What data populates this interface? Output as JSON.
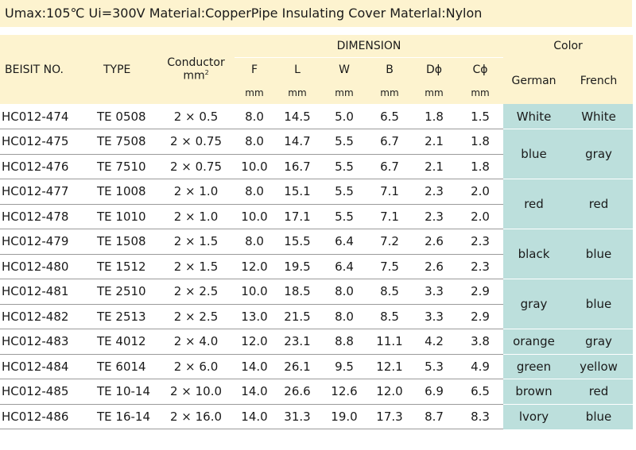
{
  "banner": "Umax:105℃ Ui=300V Material:CopperPipe Insulating Cover Materlal:Nylon",
  "headers": {
    "beisit_no": "BEISIT NO.",
    "type": "TYPE",
    "conductor": "Conductor",
    "conductor_unit": "mm",
    "conductor_unit_sup": "2",
    "dimension": "DIMENSION",
    "color": "Color",
    "dims": [
      "F",
      "L",
      "W",
      "B",
      "Dϕ",
      "Cϕ"
    ],
    "dim_unit": "mm",
    "german": "German",
    "french": "French"
  },
  "rows": [
    {
      "no": "HC012-474",
      "type": "TE 0508",
      "conductor": "2 × 0.5",
      "F": "8.0",
      "L": "14.5",
      "W": "5.0",
      "B": "6.5",
      "D": "1.8",
      "C": "1.5"
    },
    {
      "no": "HC012-475",
      "type": "TE 7508",
      "conductor": "2 × 0.75",
      "F": "8.0",
      "L": "14.7",
      "W": "5.5",
      "B": "6.7",
      "D": "2.1",
      "C": "1.8"
    },
    {
      "no": "HC012-476",
      "type": "TE 7510",
      "conductor": "2 × 0.75",
      "F": "10.0",
      "L": "16.7",
      "W": "5.5",
      "B": "6.7",
      "D": "2.1",
      "C": "1.8"
    },
    {
      "no": "HC012-477",
      "type": "TE 1008",
      "conductor": "2 × 1.0",
      "F": "8.0",
      "L": "15.1",
      "W": "5.5",
      "B": "7.1",
      "D": "2.3",
      "C": "2.0"
    },
    {
      "no": "HC012-478",
      "type": "TE 1010",
      "conductor": "2 × 1.0",
      "F": "10.0",
      "L": "17.1",
      "W": "5.5",
      "B": "7.1",
      "D": "2.3",
      "C": "2.0"
    },
    {
      "no": "HC012-479",
      "type": "TE 1508",
      "conductor": "2 × 1.5",
      "F": "8.0",
      "L": "15.5",
      "W": "6.4",
      "B": "7.2",
      "D": "2.6",
      "C": "2.3"
    },
    {
      "no": "HC012-480",
      "type": "TE 1512",
      "conductor": "2 × 1.5",
      "F": "12.0",
      "L": "19.5",
      "W": "6.4",
      "B": "7.5",
      "D": "2.6",
      "C": "2.3"
    },
    {
      "no": "HC012-481",
      "type": "TE 2510",
      "conductor": "2 × 2.5",
      "F": "10.0",
      "L": "18.5",
      "W": "8.0",
      "B": "8.5",
      "D": "3.3",
      "C": "2.9"
    },
    {
      "no": "HC012-482",
      "type": "TE 2513",
      "conductor": "2 × 2.5",
      "F": "13.0",
      "L": "21.5",
      "W": "8.0",
      "B": "8.5",
      "D": "3.3",
      "C": "2.9"
    },
    {
      "no": "HC012-483",
      "type": "TE 4012",
      "conductor": "2 × 4.0",
      "F": "12.0",
      "L": "23.1",
      "W": "8.8",
      "B": "11.1",
      "D": "4.2",
      "C": "3.8"
    },
    {
      "no": "HC012-484",
      "type": "TE 6014",
      "conductor": "2 × 6.0",
      "F": "14.0",
      "L": "26.1",
      "W": "9.5",
      "B": "12.1",
      "D": "5.3",
      "C": "4.9"
    },
    {
      "no": "HC012-485",
      "type": "TE 10-14",
      "conductor": "2 × 10.0",
      "F": "14.0",
      "L": "26.6",
      "W": "12.6",
      "B": "12.0",
      "D": "6.9",
      "C": "6.5"
    },
    {
      "no": "HC012-486",
      "type": "TE 16-14",
      "conductor": "2 × 16.0",
      "F": "14.0",
      "L": "31.3",
      "W": "19.0",
      "B": "17.3",
      "D": "8.7",
      "C": "8.3"
    }
  ],
  "color_groups": [
    {
      "german": "White",
      "french": "White"
    },
    {
      "german": "blue",
      "french": "gray"
    },
    {
      "german": "red",
      "french": "red"
    },
    {
      "german": "black",
      "french": "blue"
    },
    {
      "german": "gray",
      "french": "blue"
    },
    {
      "german": "orange",
      "french": "gray"
    },
    {
      "german": "green",
      "french": "yellow"
    },
    {
      "german": "brown",
      "french": "red"
    },
    {
      "german": "lvory",
      "french": "blue"
    }
  ],
  "colors": {
    "header_bg": "#fdf3cf",
    "color_cell_bg": "#bcdfdc",
    "row_rule": "#9a9a9a"
  }
}
